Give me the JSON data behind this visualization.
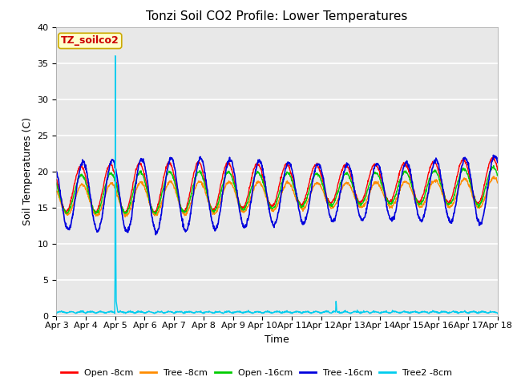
{
  "title": "Tonzi Soil CO2 Profile: Lower Temperatures",
  "xlabel": "Time",
  "ylabel": "Soil Temperatures (C)",
  "ylim": [
    0,
    40
  ],
  "yticks": [
    0,
    5,
    10,
    15,
    20,
    25,
    30,
    35,
    40
  ],
  "xtick_labels": [
    "Apr 3",
    "Apr 4",
    "Apr 5",
    "Apr 6",
    "Apr 7",
    "Apr 8",
    "Apr 9",
    "Apr 10",
    "Apr 11",
    "Apr 12",
    "Apr 13",
    "Apr 14",
    "Apr 15",
    "Apr 16",
    "Apr 17",
    "Apr 18"
  ],
  "series_colors": {
    "open_8cm": "#ff0000",
    "tree_8cm": "#ff8c00",
    "open_16cm": "#00cc00",
    "tree_16cm": "#0000dd",
    "tree2_8cm": "#00ccee"
  },
  "legend_labels": [
    "Open -8cm",
    "Tree -8cm",
    "Open -16cm",
    "Tree -16cm",
    "Tree2 -8cm"
  ],
  "annotation_label": "TZ_soilco2",
  "annotation_color": "#cc0000",
  "annotation_bg": "#ffffcc",
  "annotation_border": "#ccaa00",
  "background_color": "#e8e8e8",
  "grid_color": "#ffffff",
  "title_fontsize": 11,
  "axis_fontsize": 9,
  "tick_fontsize": 8,
  "legend_fontsize": 8
}
